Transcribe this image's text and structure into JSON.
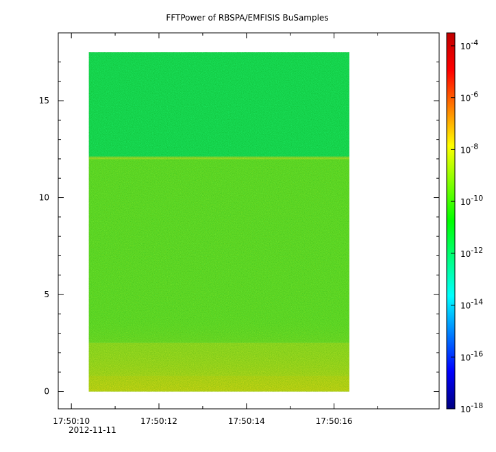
{
  "chart_data": {
    "type": "heatmap",
    "title": "FFTPower of RBSPA/EMFISIS  BuSamples",
    "xlabel": "",
    "ylabel": "",
    "date_label": "2012-11-11",
    "x_ticks": [
      {
        "value": 10,
        "label": "17:50:10"
      },
      {
        "value": 12,
        "label": "17:50:12"
      },
      {
        "value": 14,
        "label": "17:50:14"
      },
      {
        "value": 16,
        "label": "17:50:16"
      }
    ],
    "x_range_seconds": [
      9.7,
      18.4
    ],
    "x_data_range_seconds": [
      10.4,
      16.35
    ],
    "y_ticks": [
      0,
      5,
      10,
      15
    ],
    "ylim": [
      -0.9,
      18.5
    ],
    "y_data_range": [
      0,
      17.5
    ],
    "band_edge_y": 12.05,
    "grid": false,
    "colorbar": {
      "scale": "log",
      "range_exponent": [
        -18,
        -3.5
      ],
      "ticks": [
        {
          "base": "10",
          "exp": "-4"
        },
        {
          "base": "10",
          "exp": "-6"
        },
        {
          "base": "10",
          "exp": "-8"
        },
        {
          "base": "10",
          "exp": "-10"
        },
        {
          "base": "10",
          "exp": "-12"
        },
        {
          "base": "10",
          "exp": "-14"
        },
        {
          "base": "10",
          "exp": "-16"
        },
        {
          "base": "10",
          "exp": "-18"
        }
      ],
      "colors": [
        "#00007f",
        "#0000ff",
        "#007fff",
        "#00ffff",
        "#00ff80",
        "#00ff00",
        "#80ff00",
        "#ffff00",
        "#ff8000",
        "#ff0000",
        "#bf0000"
      ]
    },
    "power_regions": [
      {
        "y_range": [
          12.05,
          17.5
        ],
        "log_power": -12.0,
        "color": "#1ef06a"
      },
      {
        "y_range": [
          2.5,
          12.05
        ],
        "log_power": -10.5,
        "color": "#52e83c"
      },
      {
        "y_range": [
          0.8,
          2.5
        ],
        "log_power": -9.5,
        "color": "#a8e632"
      },
      {
        "y_range": [
          0,
          0.8
        ],
        "log_power": -8.5,
        "color": "#e6dc1e"
      }
    ]
  }
}
